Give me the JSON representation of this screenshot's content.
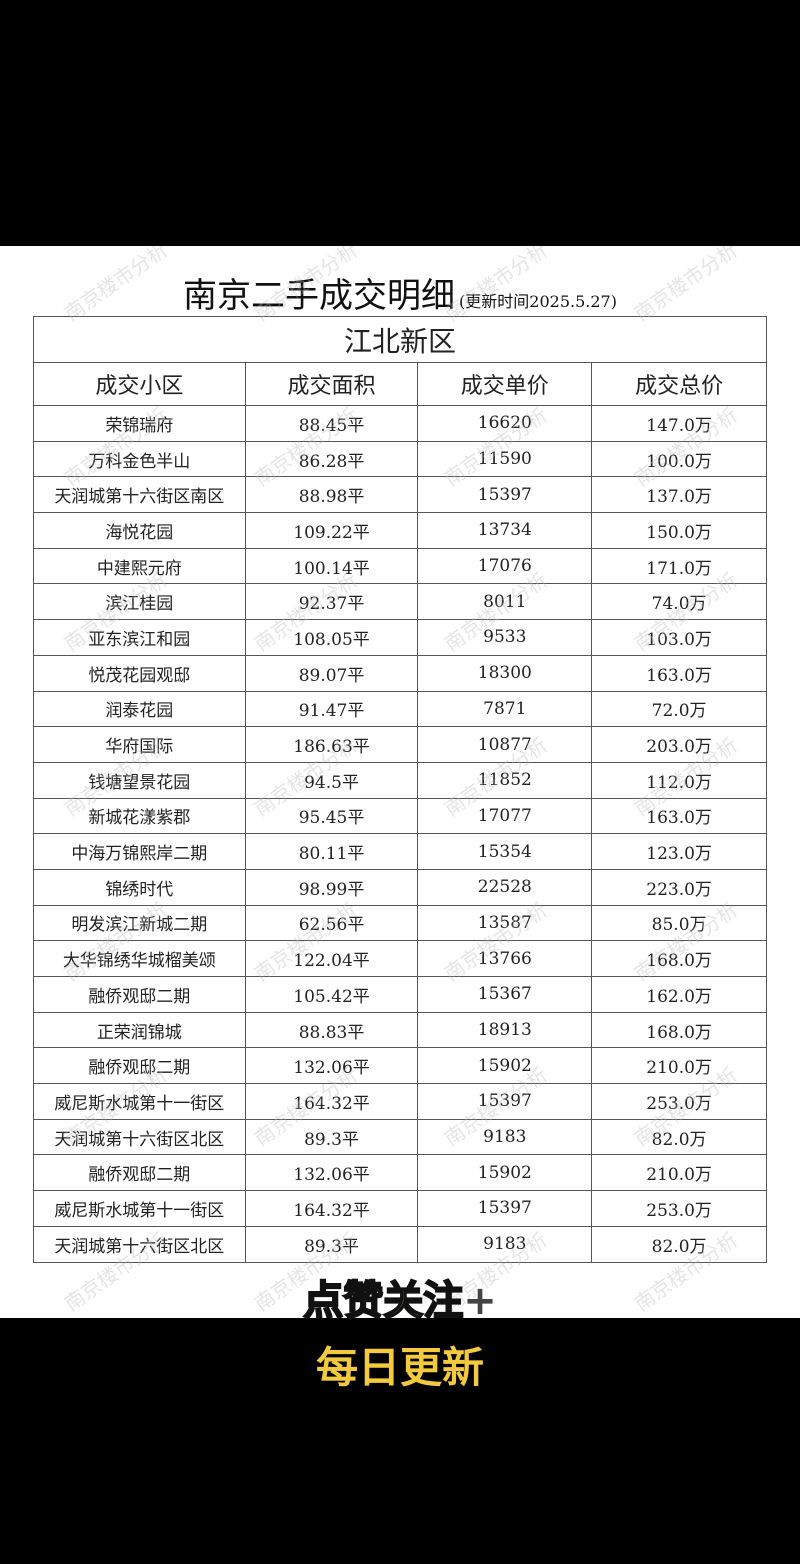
{
  "title": "南京二手成交明细",
  "update_note": "(更新时间2025.5.27)",
  "district": "江北新区",
  "watermark": "南京楼市分析",
  "headers": [
    "成交小区",
    "成交面积",
    "成交单价",
    "成交总价"
  ],
  "rows": [
    [
      "荣锦瑞府",
      "88.45平",
      "16620",
      "147.0万"
    ],
    [
      "万科金色半山",
      "86.28平",
      "11590",
      "100.0万"
    ],
    [
      "天润城第十六街区南区",
      "88.98平",
      "15397",
      "137.0万"
    ],
    [
      "海悦花园",
      "109.22平",
      "13734",
      "150.0万"
    ],
    [
      "中建熙元府",
      "100.14平",
      "17076",
      "171.0万"
    ],
    [
      "滨江桂园",
      "92.37平",
      "8011",
      "74.0万"
    ],
    [
      "亚东滨江和园",
      "108.05平",
      "9533",
      "103.0万"
    ],
    [
      "悦茂花园观邸",
      "89.07平",
      "18300",
      "163.0万"
    ],
    [
      "润泰花园",
      "91.47平",
      "7871",
      "72.0万"
    ],
    [
      "华府国际",
      "186.63平",
      "10877",
      "203.0万"
    ],
    [
      "钱塘望景花园",
      "94.5平",
      "11852",
      "112.0万"
    ],
    [
      "新城花漾紫郡",
      "95.45平",
      "17077",
      "163.0万"
    ],
    [
      "中海万锦熙岸二期",
      "80.11平",
      "15354",
      "123.0万"
    ],
    [
      "锦绣时代",
      "98.99平",
      "22528",
      "223.0万"
    ],
    [
      "明发滨江新城二期",
      "62.56平",
      "13587",
      "85.0万"
    ],
    [
      "大华锦绣华城榴美颂",
      "122.04平",
      "13766",
      "168.0万"
    ],
    [
      "融侨观邸二期",
      "105.42平",
      "15367",
      "162.0万"
    ],
    [
      "正荣润锦城",
      "88.83平",
      "18913",
      "168.0万"
    ],
    [
      "融侨观邸二期",
      "132.06平",
      "15902",
      "210.0万"
    ],
    [
      "威尼斯水城第十一街区",
      "164.32平",
      "15397",
      "253.0万"
    ],
    [
      "天润城第十六街区北区",
      "89.3平",
      "9183",
      "82.0万"
    ],
    [
      "融侨观邸二期",
      "132.06平",
      "15902",
      "210.0万"
    ],
    [
      "威尼斯水城第十一街区",
      "164.32平",
      "15397",
      "253.0万"
    ],
    [
      "天润城第十六街区北区",
      "89.3平",
      "9183",
      "82.0万"
    ]
  ],
  "overlay": {
    "line1": "点赞关注",
    "plus": "+",
    "line2": "每日更新"
  },
  "colors": {
    "overlay_text": "#f3c93e",
    "background": "#000000"
  }
}
